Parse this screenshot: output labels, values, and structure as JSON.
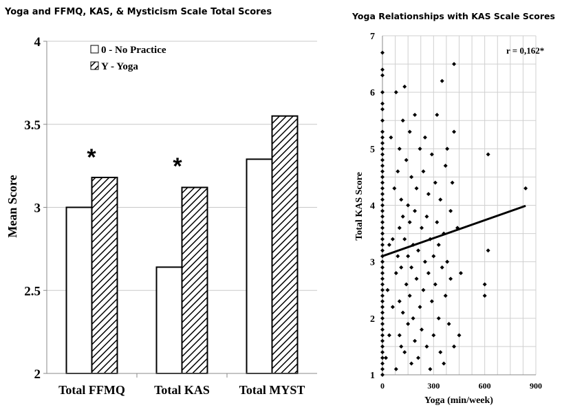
{
  "chart_data": [
    {
      "type": "bar",
      "title": "Yoga and FFMQ, KAS, & Mysticism  Scale Total Scores",
      "ylabel": "Mean Score",
      "xlabel": "",
      "categories": [
        "Total FFMQ",
        "Total KAS",
        "Total MYST"
      ],
      "series": [
        {
          "name": "0 - No Practice",
          "values": [
            3.0,
            2.64,
            3.29
          ],
          "fill": "white"
        },
        {
          "name": "Y - Yoga",
          "values": [
            3.18,
            3.12,
            3.55
          ],
          "fill": "hatched"
        }
      ],
      "ylim": [
        2,
        4
      ],
      "yticks": [
        "2",
        "2.5",
        "3",
        "3.5",
        "4"
      ],
      "annotations": [
        {
          "text": "*",
          "category": "Total FFMQ",
          "y": 3.33
        },
        {
          "text": "*",
          "category": "Total KAS",
          "y": 3.27
        }
      ],
      "grid": true,
      "legend": "top-left"
    },
    {
      "type": "scatter",
      "title": "Yoga Relationships with KAS Scale Scores",
      "xlabel": "Yoga (min/week)",
      "ylabel": "Total KAS Score",
      "xlim": [
        0,
        900
      ],
      "ylim": [
        1,
        7
      ],
      "xticks": [
        "0",
        "300",
        "600",
        "900"
      ],
      "yticks": [
        "1",
        "2",
        "3",
        "4",
        "5",
        "6",
        "7"
      ],
      "annotation": "r = 0,162*",
      "trendline": {
        "x": [
          0,
          840
        ],
        "y": [
          3.1,
          3.99
        ]
      },
      "grid": true,
      "points": [
        [
          0,
          1.0
        ],
        [
          0,
          1.1
        ],
        [
          0,
          1.2
        ],
        [
          0,
          1.3
        ],
        [
          0,
          1.4
        ],
        [
          0,
          1.5
        ],
        [
          0,
          1.6
        ],
        [
          0,
          1.7
        ],
        [
          0,
          1.8
        ],
        [
          0,
          1.9
        ],
        [
          0,
          2.0
        ],
        [
          0,
          2.1
        ],
        [
          0,
          2.2
        ],
        [
          0,
          2.3
        ],
        [
          0,
          2.4
        ],
        [
          0,
          2.5
        ],
        [
          0,
          2.6
        ],
        [
          0,
          2.7
        ],
        [
          0,
          2.8
        ],
        [
          0,
          2.9
        ],
        [
          0,
          3.0
        ],
        [
          0,
          3.1
        ],
        [
          0,
          3.2
        ],
        [
          0,
          3.3
        ],
        [
          0,
          3.4
        ],
        [
          0,
          3.5
        ],
        [
          0,
          3.6
        ],
        [
          0,
          3.7
        ],
        [
          0,
          3.8
        ],
        [
          0,
          3.9
        ],
        [
          0,
          4.0
        ],
        [
          0,
          4.1
        ],
        [
          0,
          4.2
        ],
        [
          0,
          4.3
        ],
        [
          0,
          4.4
        ],
        [
          0,
          4.5
        ],
        [
          0,
          4.6
        ],
        [
          0,
          4.7
        ],
        [
          0,
          4.8
        ],
        [
          0,
          4.9
        ],
        [
          0,
          5.0
        ],
        [
          0,
          5.1
        ],
        [
          0,
          5.2
        ],
        [
          0,
          5.3
        ],
        [
          0,
          5.5
        ],
        [
          0,
          5.7
        ],
        [
          0,
          5.8
        ],
        [
          0,
          6.0
        ],
        [
          0,
          6.3
        ],
        [
          0,
          6.4
        ],
        [
          0,
          6.7
        ],
        [
          20,
          1.3
        ],
        [
          30,
          2.5
        ],
        [
          40,
          1.7
        ],
        [
          40,
          3.3
        ],
        [
          50,
          5.2
        ],
        [
          60,
          3.4
        ],
        [
          60,
          2.2
        ],
        [
          70,
          4.3
        ],
        [
          80,
          1.1
        ],
        [
          80,
          2.8
        ],
        [
          80,
          6.0
        ],
        [
          90,
          3.1
        ],
        [
          90,
          4.6
        ],
        [
          100,
          1.7
        ],
        [
          100,
          2.3
        ],
        [
          100,
          3.6
        ],
        [
          100,
          5.0
        ],
        [
          110,
          2.9
        ],
        [
          110,
          4.1
        ],
        [
          110,
          1.5
        ],
        [
          120,
          3.8
        ],
        [
          120,
          2.1
        ],
        [
          120,
          5.5
        ],
        [
          130,
          1.4
        ],
        [
          130,
          3.4
        ],
        [
          130,
          6.1
        ],
        [
          140,
          2.6
        ],
        [
          140,
          4.8
        ],
        [
          150,
          1.9
        ],
        [
          150,
          3.1
        ],
        [
          150,
          4.0
        ],
        [
          160,
          2.4
        ],
        [
          160,
          3.7
        ],
        [
          160,
          5.3
        ],
        [
          170,
          1.2
        ],
        [
          170,
          2.9
        ],
        [
          170,
          4.5
        ],
        [
          180,
          3.3
        ],
        [
          180,
          2.0
        ],
        [
          190,
          5.6
        ],
        [
          190,
          1.6
        ],
        [
          190,
          3.9
        ],
        [
          200,
          2.7
        ],
        [
          200,
          4.3
        ],
        [
          210,
          1.3
        ],
        [
          210,
          3.2
        ],
        [
          220,
          2.2
        ],
        [
          220,
          5.0
        ],
        [
          230,
          3.6
        ],
        [
          230,
          1.8
        ],
        [
          240,
          4.6
        ],
        [
          240,
          2.5
        ],
        [
          250,
          3.0
        ],
        [
          250,
          5.2
        ],
        [
          260,
          1.5
        ],
        [
          260,
          3.8
        ],
        [
          270,
          2.8
        ],
        [
          270,
          4.2
        ],
        [
          280,
          1.1
        ],
        [
          280,
          3.4
        ],
        [
          290,
          2.3
        ],
        [
          290,
          4.9
        ],
        [
          300,
          3.1
        ],
        [
          300,
          1.7
        ],
        [
          310,
          4.4
        ],
        [
          310,
          2.6
        ],
        [
          320,
          3.7
        ],
        [
          320,
          5.6
        ],
        [
          330,
          2.0
        ],
        [
          330,
          3.3
        ],
        [
          340,
          4.1
        ],
        [
          340,
          1.4
        ],
        [
          350,
          2.9
        ],
        [
          350,
          6.2
        ],
        [
          360,
          3.5
        ],
        [
          360,
          1.2
        ],
        [
          370,
          4.7
        ],
        [
          370,
          2.4
        ],
        [
          380,
          3.0
        ],
        [
          380,
          5.0
        ],
        [
          390,
          1.9
        ],
        [
          400,
          3.9
        ],
        [
          400,
          2.7
        ],
        [
          410,
          4.4
        ],
        [
          420,
          6.5
        ],
        [
          420,
          5.3
        ],
        [
          420,
          1.5
        ],
        [
          440,
          3.6
        ],
        [
          450,
          1.7
        ],
        [
          460,
          2.8
        ],
        [
          600,
          2.6
        ],
        [
          600,
          2.4
        ],
        [
          620,
          3.2
        ],
        [
          620,
          4.9
        ],
        [
          840,
          4.3
        ]
      ]
    }
  ]
}
